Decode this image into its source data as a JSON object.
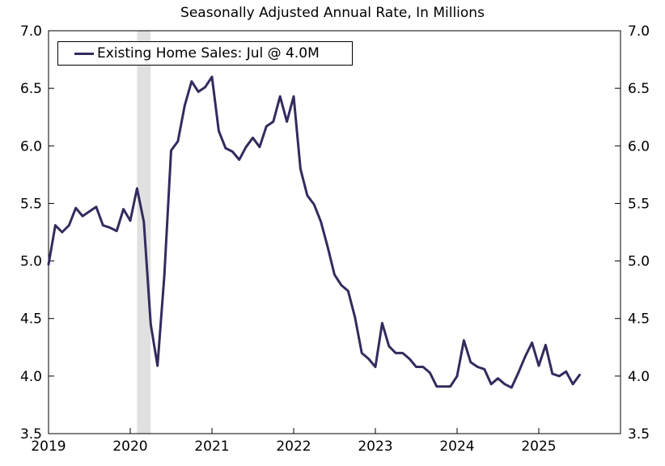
{
  "chart_data": {
    "type": "line",
    "subtitle": "Seasonally Adjusted Annual Rate, In Millions",
    "legend": {
      "label": "Existing Home Sales: Jul @ 4.0M",
      "placement": "top-left"
    },
    "line_color": "#332b5e",
    "recession_color": "#e0e0e0",
    "recession_band": [
      "2020-02",
      "2020-04"
    ],
    "x_ticks": [
      "2019",
      "2020",
      "2021",
      "2022",
      "2023",
      "2024",
      "2025"
    ],
    "x_range": [
      "2019-01",
      "2025-12"
    ],
    "y_ticks": [
      "3.5",
      "4.0",
      "4.5",
      "5.0",
      "5.5",
      "6.0",
      "6.5",
      "7.0"
    ],
    "ylim": [
      3.5,
      7.0
    ],
    "grid": false,
    "series": [
      {
        "name": "Existing Home Sales",
        "x": [
          "2019-01",
          "2019-02",
          "2019-03",
          "2019-04",
          "2019-05",
          "2019-06",
          "2019-07",
          "2019-08",
          "2019-09",
          "2019-10",
          "2019-11",
          "2019-12",
          "2020-01",
          "2020-02",
          "2020-03",
          "2020-04",
          "2020-05",
          "2020-06",
          "2020-07",
          "2020-08",
          "2020-09",
          "2020-10",
          "2020-11",
          "2020-12",
          "2021-01",
          "2021-02",
          "2021-03",
          "2021-04",
          "2021-05",
          "2021-06",
          "2021-07",
          "2021-08",
          "2021-09",
          "2021-10",
          "2021-11",
          "2021-12",
          "2022-01",
          "2022-02",
          "2022-03",
          "2022-04",
          "2022-05",
          "2022-06",
          "2022-07",
          "2022-08",
          "2022-09",
          "2022-10",
          "2022-11",
          "2022-12",
          "2023-01",
          "2023-02",
          "2023-03",
          "2023-04",
          "2023-05",
          "2023-06",
          "2023-07",
          "2023-08",
          "2023-09",
          "2023-10",
          "2023-11",
          "2023-12",
          "2024-01",
          "2024-02",
          "2024-03",
          "2024-04",
          "2024-05",
          "2024-06",
          "2024-07",
          "2024-08",
          "2024-09",
          "2024-10",
          "2024-11",
          "2024-12",
          "2025-01",
          "2025-02",
          "2025-03",
          "2025-04",
          "2025-05",
          "2025-06",
          "2025-07"
        ],
        "values": [
          4.97,
          5.31,
          5.25,
          5.31,
          5.46,
          5.39,
          5.43,
          5.47,
          5.31,
          5.29,
          5.26,
          5.45,
          5.35,
          5.63,
          5.34,
          4.45,
          4.09,
          4.87,
          5.96,
          6.04,
          6.35,
          6.56,
          6.47,
          6.51,
          6.6,
          6.13,
          5.98,
          5.95,
          5.88,
          5.99,
          6.07,
          5.99,
          6.17,
          6.21,
          6.43,
          6.21,
          6.43,
          5.8,
          5.57,
          5.49,
          5.34,
          5.12,
          4.88,
          4.79,
          4.74,
          4.51,
          4.2,
          4.15,
          4.08,
          4.46,
          4.26,
          4.2,
          4.2,
          4.15,
          4.08,
          4.08,
          4.03,
          3.91,
          3.91,
          3.91,
          4.0,
          4.31,
          4.12,
          4.08,
          4.06,
          3.93,
          3.98,
          3.93,
          3.9,
          4.03,
          4.17,
          4.29,
          4.09,
          4.27,
          4.02,
          4.0,
          4.04,
          3.93,
          4.01
        ]
      }
    ]
  }
}
